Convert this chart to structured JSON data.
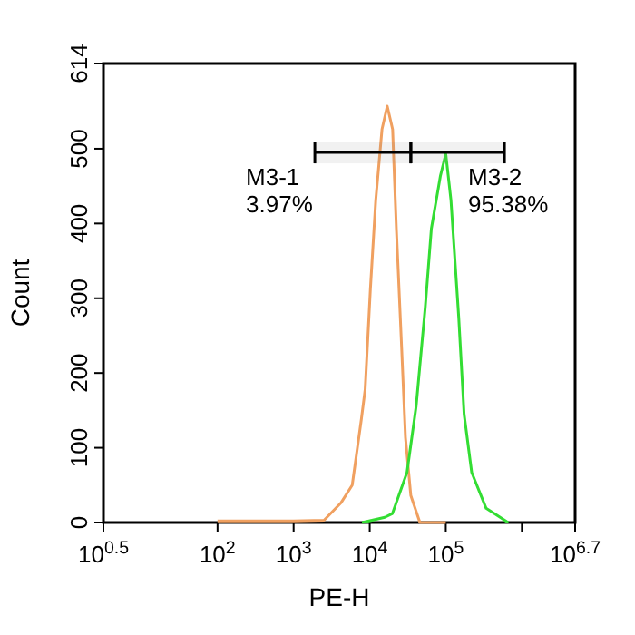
{
  "chart_data": {
    "type": "line",
    "xlabel": "PE-H",
    "ylabel": "Count",
    "log": "x",
    "xlim": [
      3.16,
      5010000
    ],
    "ylim": [
      0,
      614
    ],
    "xticks": [
      {
        "value": 3.16,
        "label": "10$^{0.5}$"
      },
      {
        "value": 100,
        "label": "10$^{2}$"
      },
      {
        "value": 1000,
        "label": "10$^{3}$"
      },
      {
        "value": 10000,
        "label": "10$^{4}$"
      },
      {
        "value": 100000,
        "label": "10$^{5}$"
      },
      {
        "value": 1000000,
        "label": null
      },
      {
        "value": 5010000,
        "label": "10$^{6.7}$"
      }
    ],
    "yticks": [
      0,
      100,
      200,
      300,
      400,
      500,
      614
    ],
    "grid": false,
    "marker": "none",
    "line_style": "solid",
    "series": [
      {
        "color": "#f0a060",
        "x": [
          100,
          1000,
          2510,
          4170,
          5890,
          7760,
          8710,
          10200,
          12000,
          14500,
          17000,
          20000,
          22400,
          26300,
          29500,
          34700,
          45700,
          100000
        ],
        "values": [
          2,
          2,
          3,
          26,
          50,
          138,
          178,
          312,
          431,
          526,
          557,
          526,
          393,
          233,
          114,
          36,
          0,
          0
        ]
      },
      {
        "color": "#33dd33",
        "x": [
          7940,
          15800,
          19900,
          30900,
          40700,
          53700,
          64600,
          85100,
          100000,
          117000,
          148000,
          174000,
          219000,
          339000,
          661000
        ],
        "values": [
          0,
          7,
          12,
          67,
          155,
          288,
          393,
          464,
          493,
          431,
          274,
          145,
          67,
          19,
          0
        ]
      }
    ],
    "bands": [
      {
        "axis": "x",
        "from": 1900,
        "to": 34700,
        "label": "M3-1 3.97%"
      },
      {
        "axis": "x",
        "from": 34700,
        "to": 590000,
        "label": "M3-2 95.38%"
      }
    ]
  }
}
